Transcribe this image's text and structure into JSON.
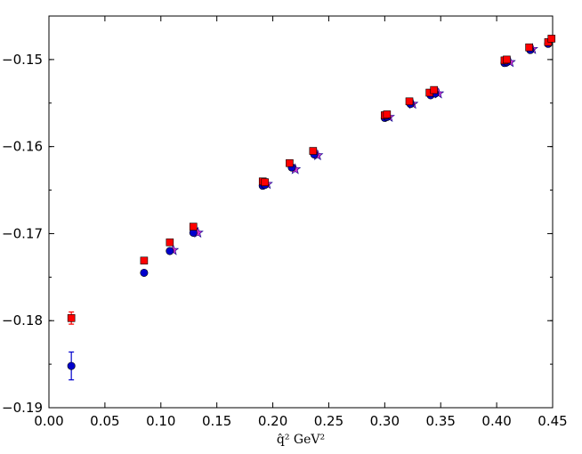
{
  "chart_data": {
    "type": "scatter",
    "title": "",
    "xlabel": "q̂² GeV²",
    "ylabel": "",
    "xlim": [
      0.0,
      0.45
    ],
    "ylim": [
      -0.19,
      -0.145
    ],
    "grid": false,
    "legend": "none",
    "x_ticks": [
      "0.00",
      "0.05",
      "0.10",
      "0.15",
      "0.20",
      "0.25",
      "0.30",
      "0.35",
      "0.40",
      "0.45"
    ],
    "y_ticks": [
      "−0.19",
      "−0.18",
      "−0.17",
      "−0.16",
      "−0.15"
    ],
    "x_tick_values": [
      0.0,
      0.05,
      0.1,
      0.15,
      0.2,
      0.25,
      0.3,
      0.35,
      0.4,
      0.45
    ],
    "y_tick_values": [
      -0.19,
      -0.18,
      -0.17,
      -0.16,
      -0.15
    ],
    "series": [
      {
        "marker": "square",
        "color": "#ff0000",
        "points": [
          {
            "x": 0.02,
            "y": -0.1797,
            "err": 0.0007
          },
          {
            "x": 0.085,
            "y": -0.1731
          },
          {
            "x": 0.108,
            "y": -0.171
          },
          {
            "x": 0.129,
            "y": -0.1692
          },
          {
            "x": 0.191,
            "y": -0.164
          },
          {
            "x": 0.193,
            "y": -0.1641
          },
          {
            "x": 0.215,
            "y": -0.1619
          },
          {
            "x": 0.236,
            "y": -0.1605
          },
          {
            "x": 0.3,
            "y": -0.1564
          },
          {
            "x": 0.302,
            "y": -0.1563
          },
          {
            "x": 0.322,
            "y": -0.1548
          },
          {
            "x": 0.34,
            "y": -0.1538
          },
          {
            "x": 0.344,
            "y": -0.1535
          },
          {
            "x": 0.407,
            "y": -0.1501
          },
          {
            "x": 0.409,
            "y": -0.15
          },
          {
            "x": 0.429,
            "y": -0.1486
          },
          {
            "x": 0.446,
            "y": -0.148
          },
          {
            "x": 0.449,
            "y": -0.1476
          }
        ]
      },
      {
        "marker": "circle",
        "color": "#0000cc",
        "points": [
          {
            "x": 0.02,
            "y": -0.1852,
            "err": 0.0016
          },
          {
            "x": 0.085,
            "y": -0.1745
          },
          {
            "x": 0.108,
            "y": -0.172
          },
          {
            "x": 0.129,
            "y": -0.1699
          },
          {
            "x": 0.191,
            "y": -0.1645
          },
          {
            "x": 0.193,
            "y": -0.1644
          },
          {
            "x": 0.217,
            "y": -0.1624
          },
          {
            "x": 0.237,
            "y": -0.1609
          },
          {
            "x": 0.3,
            "y": -0.1567
          },
          {
            "x": 0.302,
            "y": -0.1566
          },
          {
            "x": 0.323,
            "y": -0.1551
          },
          {
            "x": 0.341,
            "y": -0.1541
          },
          {
            "x": 0.345,
            "y": -0.1539
          },
          {
            "x": 0.407,
            "y": -0.1504
          },
          {
            "x": 0.409,
            "y": -0.1503
          },
          {
            "x": 0.43,
            "y": -0.1489
          },
          {
            "x": 0.446,
            "y": -0.1482
          }
        ]
      },
      {
        "marker": "star",
        "color": "#cc33cc",
        "points": [
          {
            "x": 0.111,
            "y": -0.1719
          },
          {
            "x": 0.133,
            "y": -0.1699
          },
          {
            "x": 0.195,
            "y": -0.1643
          },
          {
            "x": 0.22,
            "y": -0.1626
          },
          {
            "x": 0.24,
            "y": -0.161
          },
          {
            "x": 0.304,
            "y": -0.1566
          },
          {
            "x": 0.325,
            "y": -0.1551
          },
          {
            "x": 0.348,
            "y": -0.1539
          },
          {
            "x": 0.412,
            "y": -0.1503
          },
          {
            "x": 0.432,
            "y": -0.1488
          }
        ]
      }
    ]
  }
}
